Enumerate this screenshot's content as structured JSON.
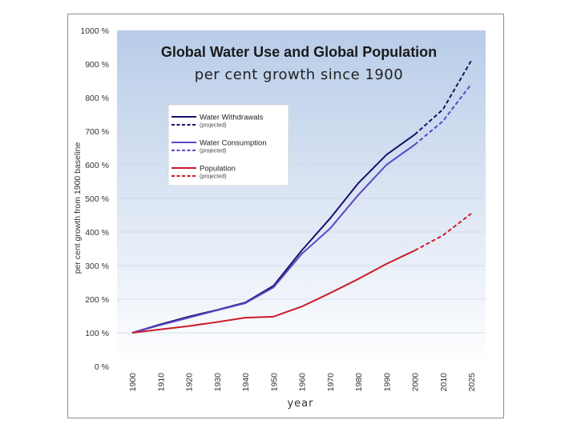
{
  "chart_data": {
    "type": "line",
    "title": "Global Water Use and Global Population",
    "subtitle": "per cent growth since 1900",
    "xlabel": "year",
    "ylabel": "per cent growth from 1900 baseline",
    "categories": [
      "1900",
      "1910",
      "1920",
      "1930",
      "1940",
      "1950",
      "1960",
      "1970",
      "1980",
      "1990",
      "2000",
      "2010",
      "2025"
    ],
    "ylim": [
      0,
      1000
    ],
    "yticks": [
      "0 %",
      "100 %",
      "200 %",
      "300 %",
      "400 %",
      "500 %",
      "600 %",
      "700 %",
      "800 %",
      "900 %",
      "1000 %"
    ],
    "projected_from": "2000",
    "series": [
      {
        "name": "Water Withdrawals",
        "projected_label": "(projected)",
        "color": "#141466",
        "values": [
          100,
          125,
          148,
          168,
          190,
          240,
          345,
          440,
          545,
          630,
          690,
          765,
          910
        ]
      },
      {
        "name": "Water Consumption",
        "projected_label": "(projected)",
        "color": "#5e45c8",
        "values": [
          100,
          123,
          145,
          167,
          188,
          235,
          335,
          410,
          510,
          600,
          660,
          730,
          840
        ]
      },
      {
        "name": "Population",
        "projected_label": "(projected)",
        "color": "#cc1a2a",
        "values": [
          100,
          110,
          120,
          132,
          145,
          148,
          178,
          218,
          260,
          305,
          345,
          390,
          455
        ]
      }
    ]
  }
}
